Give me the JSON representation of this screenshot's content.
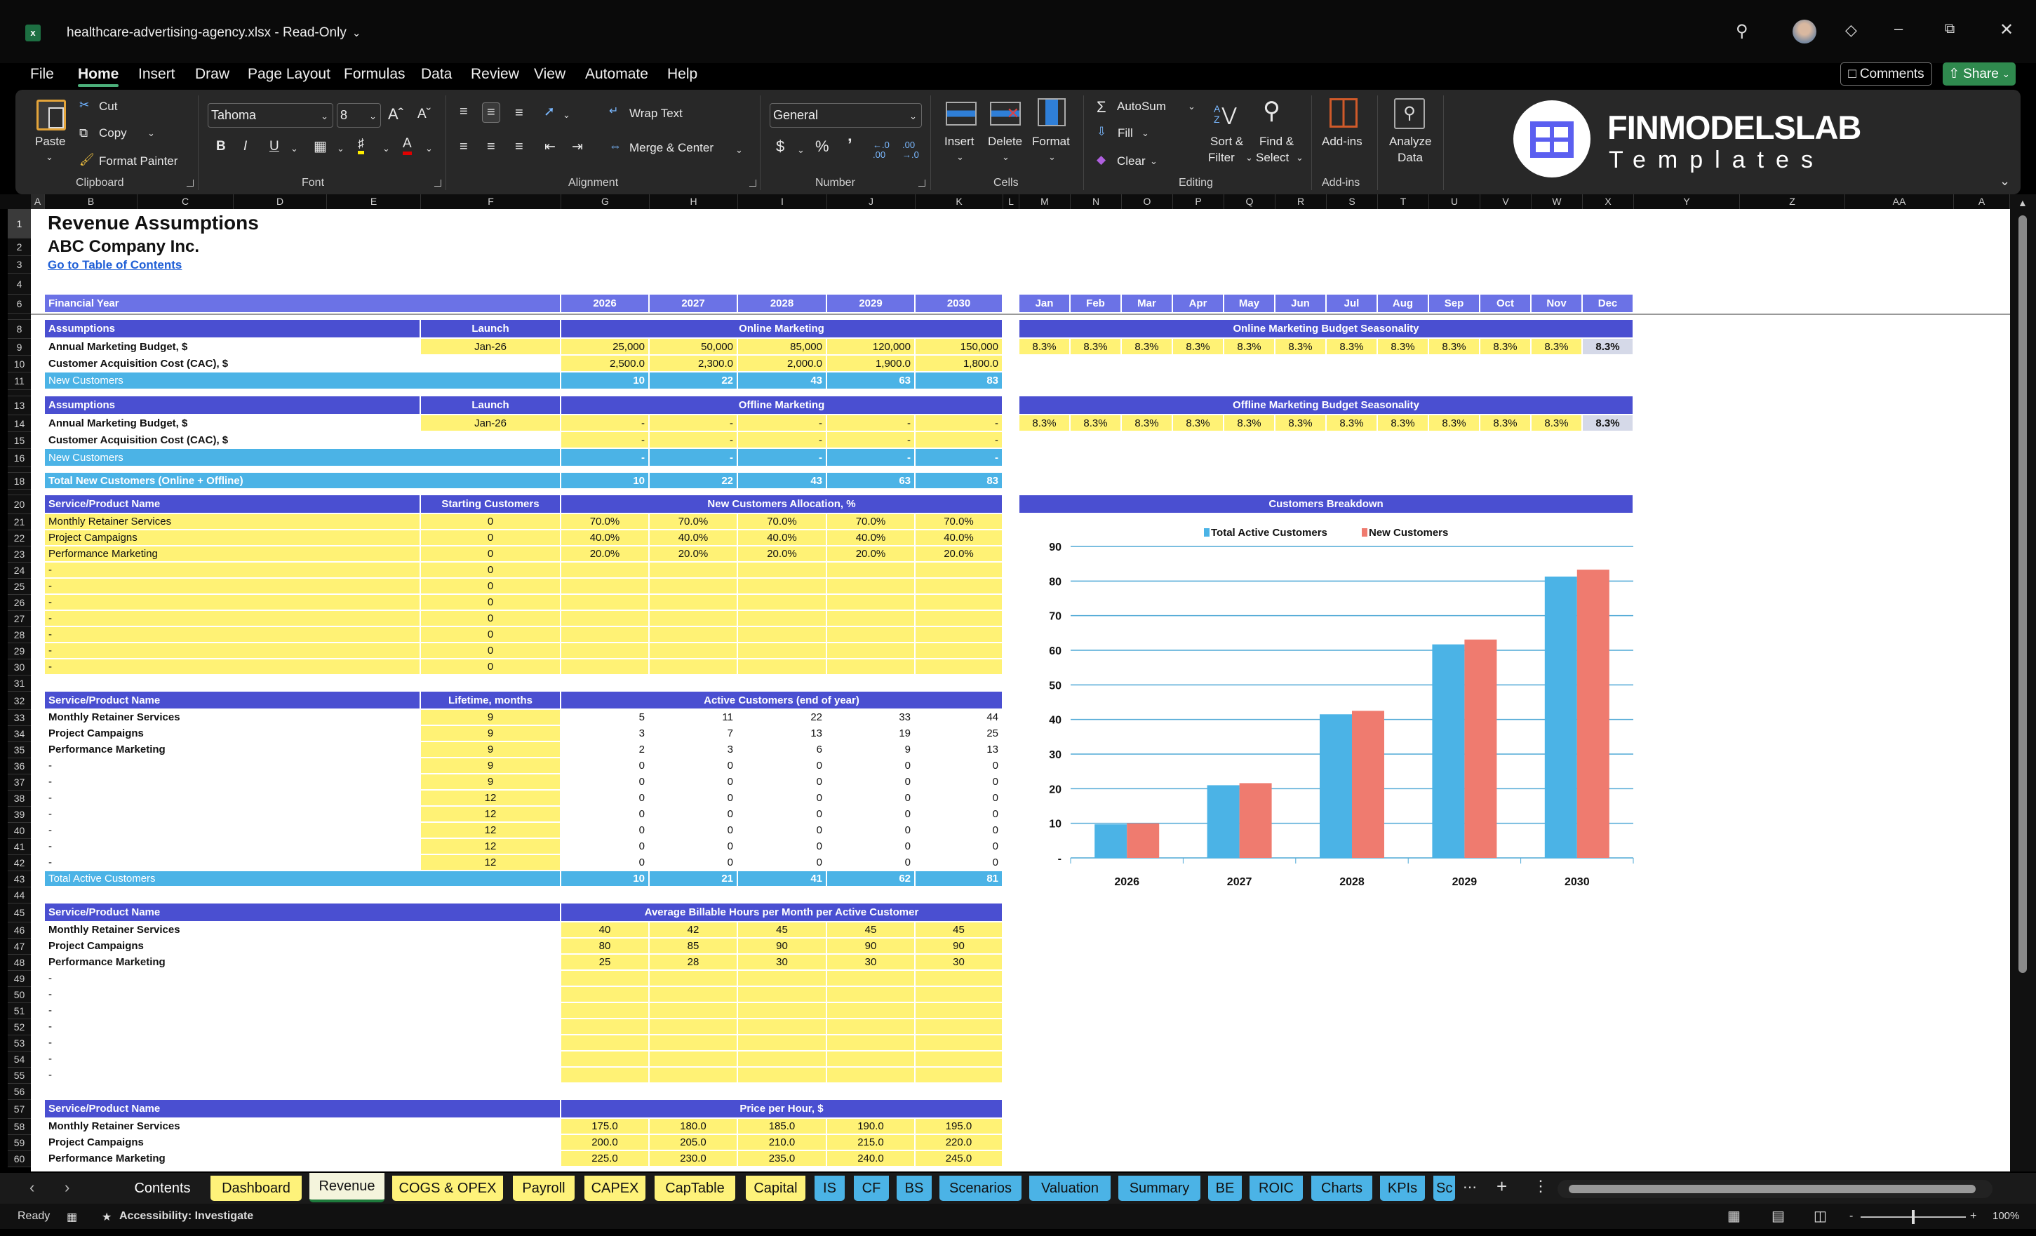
{
  "window": {
    "title": "healthcare-advertising-agency.xlsx  -  Read-Only",
    "comments": "Comments",
    "share": "Share"
  },
  "menu": [
    "File",
    "Home",
    "Insert",
    "Draw",
    "Page Layout",
    "Formulas",
    "Data",
    "Review",
    "View",
    "Automate",
    "Help"
  ],
  "active_menu": "Home",
  "ribbon": {
    "clipboard": {
      "paste": "Paste",
      "cut": "Cut",
      "copy": "Copy",
      "format_painter": "Format Painter",
      "label": "Clipboard"
    },
    "font": {
      "name": "Tahoma",
      "size": "8",
      "label": "Font"
    },
    "alignment": {
      "wrap": "Wrap Text",
      "merge": "Merge & Center",
      "label": "Alignment"
    },
    "number": {
      "format": "General",
      "label": "Number"
    },
    "cells": {
      "insert": "Insert",
      "delete": "Delete",
      "format": "Format",
      "label": "Cells"
    },
    "editing": {
      "autosum": "AutoSum",
      "fill": "Fill",
      "clear": "Clear",
      "sort1": "Sort &",
      "sort2": "Filter",
      "find1": "Find &",
      "find2": "Select",
      "label": "Editing"
    },
    "addins": {
      "button": "Add-ins",
      "label": "Add-ins"
    },
    "analyze": {
      "line1": "Analyze",
      "line2": "Data"
    },
    "logo": {
      "brand": "FINMODELSLAB",
      "sub": "Templates"
    }
  },
  "columns": [
    "A",
    "B",
    "C",
    "D",
    "E",
    "F",
    "G",
    "H",
    "I",
    "J",
    "K",
    "L",
    "M",
    "N",
    "O",
    "P",
    "Q",
    "R",
    "S",
    "T",
    "U",
    "V",
    "W",
    "X",
    "Y",
    "Z",
    "AA",
    "A"
  ],
  "sheet": {
    "title": "Revenue Assumptions",
    "company": "ABC Company Inc.",
    "toc_link": "Go to Table of Contents",
    "financial_year": {
      "label": "Financial Year",
      "years": [
        "2026",
        "2027",
        "2028",
        "2029",
        "2030"
      ]
    },
    "months": [
      "Jan",
      "Feb",
      "Mar",
      "Apr",
      "May",
      "Jun",
      "Jul",
      "Aug",
      "Sep",
      "Oct",
      "Nov",
      "Dec"
    ],
    "online": {
      "header": "Assumptions",
      "launch_header": "Launch",
      "title": "Online Marketing",
      "rows": [
        {
          "label": "Annual Marketing Budget, $",
          "launch": "Jan-26",
          "values": [
            "25,000",
            "50,000",
            "85,000",
            "120,000",
            "150,000"
          ]
        },
        {
          "label": "Customer Acquisition Cost (CAC), $",
          "launch": "",
          "values": [
            "2,500.0",
            "2,300.0",
            "2,000.0",
            "1,900.0",
            "1,800.0"
          ]
        }
      ],
      "total": {
        "label": "New Customers",
        "values": [
          "10",
          "22",
          "43",
          "63",
          "83"
        ]
      }
    },
    "offline": {
      "header": "Assumptions",
      "launch_header": "Launch",
      "title": "Offline Marketing",
      "rows": [
        {
          "label": "Annual Marketing Budget, $",
          "launch": "Jan-26",
          "values": [
            "-",
            "-",
            "-",
            "-",
            "-"
          ]
        },
        {
          "label": "Customer Acquisition Cost (CAC), $",
          "launch": "",
          "values": [
            "-",
            "-",
            "-",
            "-",
            "-"
          ]
        }
      ],
      "total": {
        "label": "New Customers",
        "values": [
          "-",
          "-",
          "-",
          "-",
          "-"
        ]
      }
    },
    "total_new": {
      "label": "Total New Customers (Online + Offline)",
      "values": [
        "10",
        "22",
        "43",
        "63",
        "83"
      ]
    },
    "online_seasonality": {
      "title": "Online Marketing Budget Seasonality",
      "values": [
        "8.3%",
        "8.3%",
        "8.3%",
        "8.3%",
        "8.3%",
        "8.3%",
        "8.3%",
        "8.3%",
        "8.3%",
        "8.3%",
        "8.3%",
        "8.3%"
      ]
    },
    "offline_seasonality": {
      "title": "Offline Marketing Budget Seasonality",
      "values": [
        "8.3%",
        "8.3%",
        "8.3%",
        "8.3%",
        "8.3%",
        "8.3%",
        "8.3%",
        "8.3%",
        "8.3%",
        "8.3%",
        "8.3%",
        "8.3%"
      ]
    },
    "allocation": {
      "header": "Service/Product Name",
      "mid_header": "Starting Customers",
      "title": "New Customers Allocation, %",
      "rows": [
        {
          "label": "Monthly Retainer Services",
          "mid": "0",
          "values": [
            "70.0%",
            "70.0%",
            "70.0%",
            "70.0%",
            "70.0%"
          ]
        },
        {
          "label": "Project Campaigns",
          "mid": "0",
          "values": [
            "40.0%",
            "40.0%",
            "40.0%",
            "40.0%",
            "40.0%"
          ]
        },
        {
          "label": "Performance Marketing",
          "mid": "0",
          "values": [
            "20.0%",
            "20.0%",
            "20.0%",
            "20.0%",
            "20.0%"
          ]
        },
        {
          "label": "-",
          "mid": "0",
          "values": [
            "",
            "",
            "",
            "",
            ""
          ]
        },
        {
          "label": "-",
          "mid": "0",
          "values": [
            "",
            "",
            "",
            "",
            ""
          ]
        },
        {
          "label": "-",
          "mid": "0",
          "values": [
            "",
            "",
            "",
            "",
            ""
          ]
        },
        {
          "label": "-",
          "mid": "0",
          "values": [
            "",
            "",
            "",
            "",
            ""
          ]
        },
        {
          "label": "-",
          "mid": "0",
          "values": [
            "",
            "",
            "",
            "",
            ""
          ]
        },
        {
          "label": "-",
          "mid": "0",
          "values": [
            "",
            "",
            "",
            "",
            ""
          ]
        },
        {
          "label": "-",
          "mid": "0",
          "values": [
            "",
            "",
            "",
            "",
            ""
          ]
        }
      ]
    },
    "active": {
      "header": "Service/Product Name",
      "mid_header": "Lifetime, months",
      "title": "Active Customers (end of year)",
      "rows": [
        {
          "label": "Monthly Retainer Services",
          "mid": "9",
          "values": [
            "5",
            "11",
            "22",
            "33",
            "44"
          ]
        },
        {
          "label": "Project Campaigns",
          "mid": "9",
          "values": [
            "3",
            "7",
            "13",
            "19",
            "25"
          ]
        },
        {
          "label": "Performance Marketing",
          "mid": "9",
          "values": [
            "2",
            "3",
            "6",
            "9",
            "13"
          ]
        },
        {
          "label": "-",
          "mid": "9",
          "values": [
            "0",
            "0",
            "0",
            "0",
            "0"
          ]
        },
        {
          "label": "-",
          "mid": "9",
          "values": [
            "0",
            "0",
            "0",
            "0",
            "0"
          ]
        },
        {
          "label": "-",
          "mid": "12",
          "values": [
            "0",
            "0",
            "0",
            "0",
            "0"
          ]
        },
        {
          "label": "-",
          "mid": "12",
          "values": [
            "0",
            "0",
            "0",
            "0",
            "0"
          ]
        },
        {
          "label": "-",
          "mid": "12",
          "values": [
            "0",
            "0",
            "0",
            "0",
            "0"
          ]
        },
        {
          "label": "-",
          "mid": "12",
          "values": [
            "0",
            "0",
            "0",
            "0",
            "0"
          ]
        },
        {
          "label": "-",
          "mid": "12",
          "values": [
            "0",
            "0",
            "0",
            "0",
            "0"
          ]
        }
      ],
      "total": {
        "label": "Total Active Customers",
        "values": [
          "10",
          "21",
          "41",
          "62",
          "81"
        ]
      }
    },
    "hours": {
      "header": "Service/Product Name",
      "title": "Average Billable Hours per Month per Active Customer",
      "rows": [
        {
          "label": "Monthly Retainer Services",
          "values": [
            "40",
            "42",
            "45",
            "45",
            "45"
          ]
        },
        {
          "label": "Project Campaigns",
          "values": [
            "80",
            "85",
            "90",
            "90",
            "90"
          ]
        },
        {
          "label": "Performance Marketing",
          "values": [
            "25",
            "28",
            "30",
            "30",
            "30"
          ]
        },
        {
          "label": "-",
          "values": [
            "",
            "",
            "",
            "",
            ""
          ]
        },
        {
          "label": "-",
          "values": [
            "",
            "",
            "",
            "",
            ""
          ]
        },
        {
          "label": "-",
          "values": [
            "",
            "",
            "",
            "",
            ""
          ]
        },
        {
          "label": "-",
          "values": [
            "",
            "",
            "",
            "",
            ""
          ]
        },
        {
          "label": "-",
          "values": [
            "",
            "",
            "",
            "",
            ""
          ]
        },
        {
          "label": "-",
          "values": [
            "",
            "",
            "",
            "",
            ""
          ]
        },
        {
          "label": "-",
          "values": [
            "",
            "",
            "",
            "",
            ""
          ]
        }
      ]
    },
    "price": {
      "header": "Service/Product Name",
      "title": "Price per Hour, $",
      "rows": [
        {
          "label": "Monthly Retainer Services",
          "values": [
            "175.0",
            "180.0",
            "185.0",
            "190.0",
            "195.0"
          ]
        },
        {
          "label": "Project Campaigns",
          "values": [
            "200.0",
            "205.0",
            "210.0",
            "215.0",
            "220.0"
          ]
        },
        {
          "label": "Performance Marketing",
          "values": [
            "225.0",
            "230.0",
            "235.0",
            "240.0",
            "245.0"
          ]
        }
      ]
    },
    "chart_title": "Customers Breakdown"
  },
  "chart_data": {
    "type": "bar",
    "title": "Customers Breakdown",
    "categories": [
      "2026",
      "2027",
      "2028",
      "2029",
      "2030"
    ],
    "series": [
      {
        "name": "Total Active Customers",
        "values": [
          9.7,
          21,
          41.5,
          61.7,
          81.3
        ],
        "color": "#4bb3e6"
      },
      {
        "name": "New Customers",
        "values": [
          10,
          21.6,
          42.5,
          63.1,
          83.3
        ],
        "color": "#ef7b6f"
      }
    ],
    "yticks": [
      "-",
      "10",
      "20",
      "30",
      "40",
      "50",
      "60",
      "70",
      "80",
      "90"
    ],
    "ylim": [
      0,
      90
    ],
    "grid": true,
    "legend": "top"
  },
  "tabs": [
    {
      "label": "Contents",
      "color": "none"
    },
    {
      "label": "Dashboard",
      "color": "#fef27a"
    },
    {
      "label": "Revenue",
      "color": "#f4f4dc",
      "active": true
    },
    {
      "label": "COGS & OPEX",
      "color": "#fef27a"
    },
    {
      "label": "Payroll",
      "color": "#fef27a"
    },
    {
      "label": "CAPEX",
      "color": "#fef27a"
    },
    {
      "label": "CapTable",
      "color": "#fef27a"
    },
    {
      "label": "Capital",
      "color": "#fef27a"
    },
    {
      "label": "IS",
      "color": "#4bb3e6"
    },
    {
      "label": "CF",
      "color": "#4bb3e6"
    },
    {
      "label": "BS",
      "color": "#4bb3e6"
    },
    {
      "label": "Scenarios",
      "color": "#4bb3e6"
    },
    {
      "label": "Valuation",
      "color": "#4bb3e6"
    },
    {
      "label": "Summary",
      "color": "#4bb3e6"
    },
    {
      "label": "BE",
      "color": "#4bb3e6"
    },
    {
      "label": "ROIC",
      "color": "#4bb3e6"
    },
    {
      "label": "Charts",
      "color": "#4bb3e6"
    },
    {
      "label": "KPIs",
      "color": "#4bb3e6"
    },
    {
      "label": "Sc",
      "color": "#4bb3e6"
    }
  ],
  "status": {
    "ready": "Ready",
    "accessibility": "Accessibility: Investigate",
    "zoom": "100%"
  }
}
